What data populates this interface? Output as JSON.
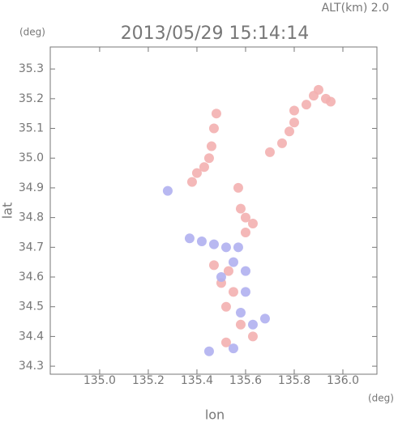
{
  "chart_data": {
    "type": "scatter",
    "title": "2013/05/29 15:14:14",
    "subtitle": "ALT(km) 2.0",
    "x_label": "lon",
    "y_label": "lat",
    "x_unit": "(deg)",
    "y_unit": "(deg)",
    "xlim": [
      134.797,
      136.14
    ],
    "ylim": [
      34.273,
      35.374
    ],
    "xticks": [
      {
        "value": 135.0,
        "label": "135.0"
      },
      135.2,
      135.4,
      135.6,
      135.8,
      {
        "value": 136.0,
        "label": "136.0"
      }
    ],
    "yticks": [
      34.3,
      34.4,
      34.5,
      34.6,
      34.7,
      34.8,
      34.9,
      {
        "value": 35.0,
        "label": "35.0"
      },
      35.1,
      35.2,
      35.3
    ],
    "grid": false,
    "series": [
      {
        "color": "#f3b0b0",
        "x": [
          135.93,
          135.88,
          135.85,
          135.8,
          135.95,
          135.9,
          135.78,
          135.75,
          135.7,
          135.8,
          135.48,
          135.47,
          135.46,
          135.45,
          135.4,
          135.43,
          135.38,
          135.6,
          135.63,
          135.6,
          135.58,
          135.57,
          135.47,
          135.53,
          135.55,
          135.52,
          135.58,
          135.63,
          135.52,
          135.5
        ],
        "y": [
          35.2,
          35.21,
          35.18,
          35.16,
          35.19,
          35.23,
          35.09,
          35.05,
          35.02,
          35.12,
          35.15,
          35.1,
          35.04,
          35.0,
          34.95,
          34.97,
          34.92,
          34.8,
          34.78,
          34.75,
          34.83,
          34.9,
          34.64,
          34.62,
          34.55,
          34.5,
          34.44,
          34.4,
          34.38,
          34.58
        ]
      },
      {
        "color": "#b0b0f0",
        "x": [
          135.37,
          135.42,
          135.47,
          135.52,
          135.57,
          135.28,
          135.55,
          135.6,
          135.5,
          135.58,
          135.63,
          135.68,
          135.45,
          135.55,
          135.6
        ],
        "y": [
          34.73,
          34.72,
          34.71,
          34.7,
          34.7,
          34.89,
          34.65,
          34.62,
          34.6,
          34.48,
          34.44,
          34.46,
          34.35,
          34.36,
          34.55
        ]
      }
    ]
  }
}
